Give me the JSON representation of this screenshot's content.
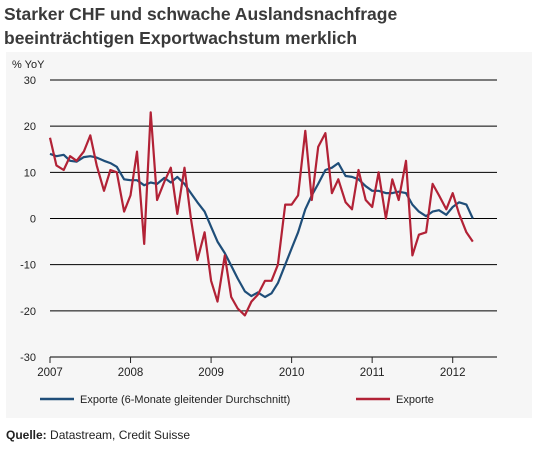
{
  "title_lines": [
    "Starker CHF und schwache Auslandsnachfrage",
    "beeinträchtigen Exportwachstum merklich"
  ],
  "source_label": "Quelle:",
  "source_text": " Datastream, Credit Suisse",
  "chart_data": {
    "type": "line",
    "ylabel": "% YoY",
    "ylim": [
      -30,
      30
    ],
    "yticks": [
      -30,
      -20,
      -10,
      0,
      10,
      20,
      30
    ],
    "xlim": [
      2007.0,
      2012.55
    ],
    "xticks": [
      2007,
      2008,
      2009,
      2010,
      2011,
      2012
    ],
    "grid": "horizontal",
    "legend_position": "bottom",
    "colors": {
      "smooth": "#1f4e79",
      "raw": "#b22236",
      "grid": "#000000"
    },
    "series": [
      {
        "name": "Exporte (6-Monate gleitender Durchschnitt)",
        "color": "#1f4e79",
        "x": [
          2007.0,
          2007.08,
          2007.17,
          2007.25,
          2007.33,
          2007.42,
          2007.5,
          2007.58,
          2007.67,
          2007.75,
          2007.83,
          2007.92,
          2008.0,
          2008.08,
          2008.17,
          2008.25,
          2008.33,
          2008.42,
          2008.5,
          2008.58,
          2008.67,
          2008.75,
          2008.83,
          2008.92,
          2009.0,
          2009.08,
          2009.17,
          2009.25,
          2009.33,
          2009.42,
          2009.5,
          2009.58,
          2009.67,
          2009.75,
          2009.83,
          2009.92,
          2010.0,
          2010.08,
          2010.17,
          2010.25,
          2010.33,
          2010.42,
          2010.5,
          2010.58,
          2010.67,
          2010.75,
          2010.83,
          2010.92,
          2011.0,
          2011.08,
          2011.17,
          2011.25,
          2011.33,
          2011.42,
          2011.5,
          2011.58,
          2011.67,
          2011.75,
          2011.83,
          2011.92,
          2012.0,
          2012.08,
          2012.17,
          2012.25
        ],
        "values": [
          14,
          13.5,
          13.8,
          12.5,
          12.3,
          13.3,
          13.5,
          13.2,
          12.5,
          12.0,
          11.2,
          8.5,
          8.3,
          8.3,
          7.2,
          7.8,
          7.5,
          8.8,
          7.8,
          9.0,
          7.5,
          5.5,
          3.5,
          1.5,
          -1.8,
          -5.0,
          -7.5,
          -10.2,
          -13.0,
          -15.8,
          -16.8,
          -16.0,
          -17.0,
          -16.2,
          -14.0,
          -10.0,
          -6.5,
          -3.0,
          2.0,
          5.0,
          7.5,
          10.5,
          11.0,
          12.0,
          9.2,
          9.0,
          8.5,
          7.0,
          6.0,
          6.0,
          5.5,
          5.5,
          5.8,
          5.5,
          3.0,
          1.5,
          0.5,
          1.5,
          1.8,
          0.8,
          2.5,
          3.5,
          3.0,
          0.0
        ]
      },
      {
        "name": "Exporte",
        "color": "#b22236",
        "x": [
          2007.0,
          2007.08,
          2007.17,
          2007.25,
          2007.33,
          2007.42,
          2007.5,
          2007.58,
          2007.67,
          2007.75,
          2007.83,
          2007.92,
          2008.0,
          2008.08,
          2008.17,
          2008.25,
          2008.33,
          2008.42,
          2008.5,
          2008.58,
          2008.67,
          2008.75,
          2008.83,
          2008.92,
          2009.0,
          2009.08,
          2009.17,
          2009.25,
          2009.33,
          2009.42,
          2009.5,
          2009.58,
          2009.67,
          2009.75,
          2009.83,
          2009.92,
          2010.0,
          2010.08,
          2010.17,
          2010.25,
          2010.33,
          2010.42,
          2010.5,
          2010.58,
          2010.67,
          2010.75,
          2010.83,
          2010.92,
          2011.0,
          2011.08,
          2011.17,
          2011.25,
          2011.33,
          2011.42,
          2011.5,
          2011.58,
          2011.67,
          2011.75,
          2011.83,
          2011.92,
          2012.0,
          2012.08,
          2012.17,
          2012.25
        ],
        "values": [
          17.5,
          11.5,
          10.5,
          13.5,
          12.5,
          14.5,
          18.0,
          11.5,
          6.0,
          10.5,
          10.0,
          1.5,
          5.0,
          14.5,
          -5.5,
          23.0,
          4.0,
          8.0,
          11.0,
          1.0,
          11.0,
          0.0,
          -9.0,
          -3.0,
          -13.5,
          -18.0,
          -8.0,
          -17.0,
          -19.5,
          -21.0,
          -18.0,
          -16.5,
          -13.5,
          -13.5,
          -10.0,
          3.0,
          3.0,
          5.0,
          19.0,
          4.0,
          15.5,
          18.5,
          5.5,
          8.5,
          3.5,
          2.0,
          10.5,
          4.0,
          2.5,
          10.0,
          0.0,
          8.5,
          4.0,
          12.5,
          -8.0,
          -3.5,
          -3.0,
          7.5,
          5.0,
          2.0,
          5.5,
          1.0,
          -3.0,
          -5.0
        ]
      }
    ]
  }
}
